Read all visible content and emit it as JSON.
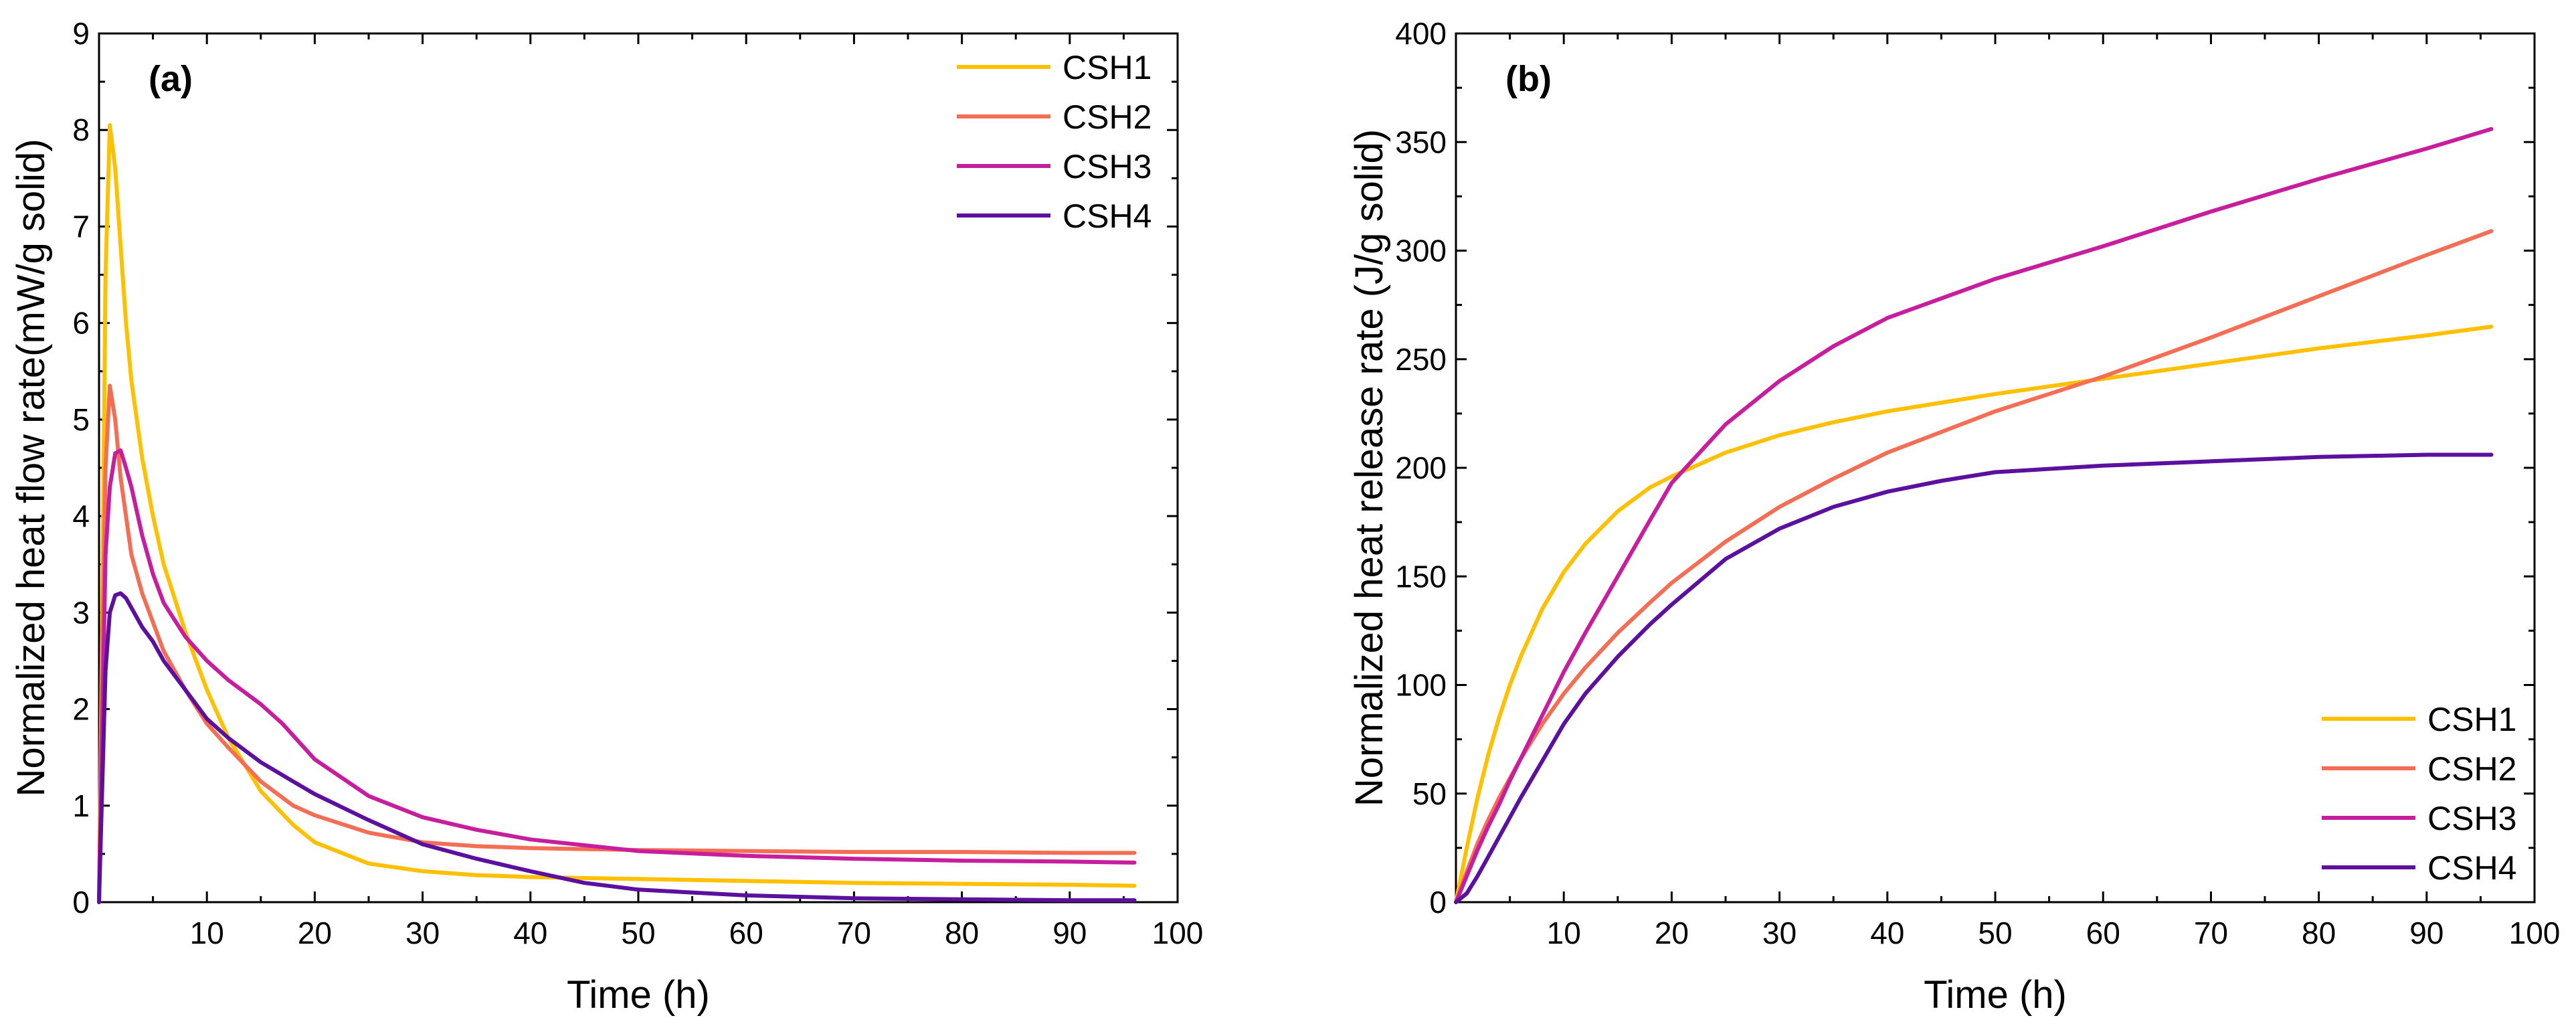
{
  "chart_data": [
    {
      "type": "line",
      "panel_label": "(a)",
      "xlabel": "Time (h)",
      "ylabel": "Normalized heat flow rate(mW/g solid)",
      "xlim": [
        0,
        100
      ],
      "ylim": [
        0,
        9
      ],
      "xticks": [
        10,
        20,
        30,
        40,
        50,
        60,
        70,
        80,
        90,
        100
      ],
      "yticks": [
        0,
        1,
        2,
        3,
        4,
        5,
        6,
        7,
        8,
        9
      ],
      "legend_position": "top-right",
      "series": [
        {
          "name": "CSH1",
          "color": "#FFC000",
          "x": [
            0,
            0.3,
            0.6,
            1.0,
            1.5,
            2,
            2.5,
            3,
            4,
            5,
            6,
            8,
            10,
            12,
            15,
            18,
            20,
            25,
            30,
            35,
            40,
            50,
            60,
            70,
            80,
            90,
            96
          ],
          "y": [
            0,
            3.0,
            6.5,
            8.05,
            7.6,
            6.8,
            6.0,
            5.4,
            4.6,
            4.0,
            3.5,
            2.8,
            2.2,
            1.7,
            1.15,
            0.8,
            0.62,
            0.4,
            0.32,
            0.28,
            0.26,
            0.24,
            0.22,
            0.2,
            0.19,
            0.18,
            0.17
          ]
        },
        {
          "name": "CSH2",
          "color": "#F46E55",
          "x": [
            0,
            0.3,
            0.6,
            1.0,
            1.5,
            2,
            2.5,
            3,
            4,
            5,
            6,
            8,
            10,
            12,
            15,
            18,
            20,
            25,
            30,
            35,
            40,
            50,
            60,
            70,
            80,
            90,
            96
          ],
          "y": [
            0,
            2.5,
            4.5,
            5.35,
            5.0,
            4.4,
            4.0,
            3.6,
            3.2,
            2.9,
            2.6,
            2.2,
            1.85,
            1.6,
            1.25,
            1.0,
            0.9,
            0.72,
            0.62,
            0.58,
            0.56,
            0.54,
            0.53,
            0.52,
            0.52,
            0.51,
            0.51
          ]
        },
        {
          "name": "CSH3",
          "color": "#C71E9E",
          "x": [
            0,
            0.3,
            0.6,
            1.0,
            1.5,
            2,
            2.5,
            3,
            4,
            5,
            6,
            8,
            10,
            12,
            15,
            17,
            20,
            25,
            30,
            35,
            40,
            50,
            60,
            70,
            80,
            90,
            96
          ],
          "y": [
            0,
            1.8,
            3.6,
            4.3,
            4.65,
            4.68,
            4.5,
            4.3,
            3.8,
            3.4,
            3.1,
            2.75,
            2.5,
            2.3,
            2.05,
            1.85,
            1.48,
            1.1,
            0.88,
            0.75,
            0.65,
            0.53,
            0.48,
            0.45,
            0.43,
            0.42,
            0.41
          ]
        },
        {
          "name": "CSH4",
          "color": "#5B109E",
          "x": [
            0,
            0.3,
            0.6,
            1.0,
            1.5,
            2,
            2.5,
            3,
            4,
            5,
            6,
            8,
            10,
            12,
            15,
            18,
            20,
            25,
            30,
            35,
            40,
            45,
            50,
            60,
            70,
            80,
            90,
            96
          ],
          "y": [
            0,
            1.2,
            2.4,
            3.0,
            3.18,
            3.2,
            3.15,
            3.05,
            2.85,
            2.7,
            2.5,
            2.2,
            1.9,
            1.7,
            1.45,
            1.25,
            1.12,
            0.85,
            0.6,
            0.45,
            0.32,
            0.2,
            0.13,
            0.07,
            0.04,
            0.03,
            0.02,
            0.02
          ]
        }
      ]
    },
    {
      "type": "line",
      "panel_label": "(b)",
      "xlabel": "Time (h)",
      "ylabel": "Normalized heat release rate (J/g solid)",
      "xlim": [
        0,
        100
      ],
      "ylim": [
        0,
        400
      ],
      "xticks": [
        10,
        20,
        30,
        40,
        50,
        60,
        70,
        80,
        90,
        100
      ],
      "yticks": [
        0,
        50,
        100,
        150,
        200,
        250,
        300,
        350,
        400
      ],
      "legend_position": "bottom-right",
      "series": [
        {
          "name": "CSH1",
          "color": "#FFC000",
          "x": [
            0,
            1,
            2,
            3,
            4,
            5,
            6,
            8,
            10,
            12,
            15,
            18,
            20,
            25,
            30,
            35,
            40,
            50,
            60,
            70,
            80,
            90,
            96
          ],
          "y": [
            0,
            25,
            48,
            68,
            85,
            100,
            113,
            135,
            152,
            165,
            180,
            191,
            196,
            207,
            215,
            221,
            226,
            234,
            241,
            248,
            255,
            261,
            265
          ]
        },
        {
          "name": "CSH2",
          "color": "#F46E55",
          "x": [
            0,
            1,
            2,
            3,
            4,
            5,
            6,
            8,
            10,
            12,
            15,
            18,
            20,
            25,
            30,
            35,
            40,
            50,
            60,
            70,
            80,
            90,
            96
          ],
          "y": [
            0,
            14,
            27,
            38,
            48,
            57,
            66,
            82,
            96,
            108,
            124,
            138,
            147,
            166,
            182,
            195,
            207,
            226,
            242,
            260,
            279,
            298,
            309
          ]
        },
        {
          "name": "CSH3",
          "color": "#C71E9E",
          "x": [
            0,
            1,
            2,
            3,
            4,
            5,
            6,
            8,
            10,
            12,
            15,
            18,
            20,
            25,
            30,
            35,
            40,
            50,
            60,
            70,
            80,
            90,
            96
          ],
          "y": [
            0,
            12,
            24,
            35,
            45,
            56,
            66,
            86,
            106,
            124,
            150,
            176,
            193,
            220,
            240,
            256,
            269,
            287,
            302,
            318,
            333,
            347,
            356
          ]
        },
        {
          "name": "CSH4",
          "color": "#5B109E",
          "x": [
            0,
            1,
            2,
            3,
            4,
            5,
            6,
            8,
            10,
            12,
            15,
            18,
            20,
            25,
            30,
            35,
            40,
            45,
            50,
            60,
            70,
            80,
            90,
            96
          ],
          "y": [
            0,
            4,
            12,
            21,
            30,
            39,
            48,
            65,
            82,
            96,
            113,
            128,
            137,
            158,
            172,
            182,
            189,
            194,
            198,
            201,
            203,
            205,
            206,
            206
          ]
        }
      ]
    }
  ]
}
